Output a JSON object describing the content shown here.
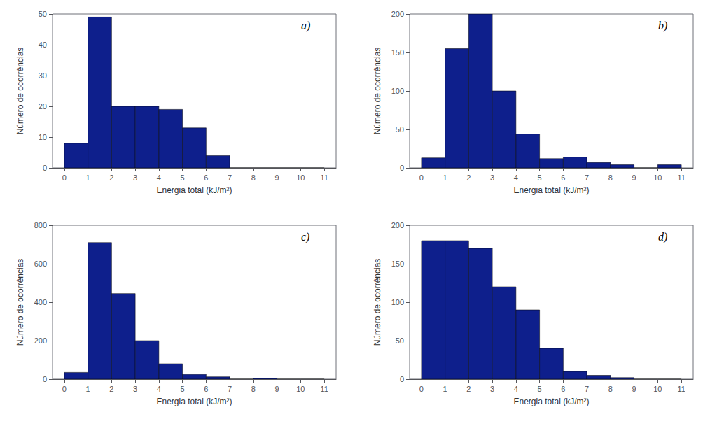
{
  "chart_data": [
    {
      "type": "histogram",
      "annotation": "a)",
      "xlabel": "Energia total (kJ/m²)",
      "ylabel": "Número de ocorrências",
      "bins": [
        0,
        1,
        2,
        3,
        4,
        5,
        6,
        7,
        8,
        9,
        10,
        11
      ],
      "values": [
        8,
        49,
        20,
        20,
        19,
        13,
        4,
        0,
        0,
        0,
        0
      ],
      "color": "#0e1f8c",
      "xlim": [
        -0.5,
        11.5
      ],
      "xticks": [
        0,
        1,
        2,
        3,
        4,
        5,
        6,
        7,
        8,
        9,
        10,
        11
      ],
      "ylim": [
        0,
        50
      ],
      "yticks": [
        0,
        10,
        20,
        30,
        40,
        50
      ],
      "grid": false
    },
    {
      "type": "histogram",
      "annotation": "b)",
      "xlabel": "Energia total (kJ/m²)",
      "ylabel": "Número de ocorrências",
      "bins": [
        0,
        1,
        2,
        3,
        4,
        5,
        6,
        7,
        8,
        9,
        10,
        11
      ],
      "values": [
        13,
        155,
        200,
        100,
        44,
        12,
        14,
        7,
        4,
        0,
        4
      ],
      "color": "#0e1f8c",
      "xlim": [
        -0.5,
        11.5
      ],
      "xticks": [
        0,
        1,
        2,
        3,
        4,
        5,
        6,
        7,
        8,
        9,
        10,
        11
      ],
      "ylim": [
        0,
        200
      ],
      "yticks": [
        0,
        50,
        100,
        150,
        200
      ],
      "grid": false
    },
    {
      "type": "histogram",
      "annotation": "c)",
      "xlabel": "Energia total (kJ/m²)",
      "ylabel": "Número de ocorrências",
      "bins": [
        0,
        1,
        2,
        3,
        4,
        5,
        6,
        7,
        8,
        9,
        10,
        11
      ],
      "values": [
        35,
        710,
        445,
        200,
        80,
        25,
        12,
        0,
        5,
        0,
        0
      ],
      "color": "#0e1f8c",
      "xlim": [
        -0.5,
        11.5
      ],
      "xticks": [
        0,
        1,
        2,
        3,
        4,
        5,
        6,
        7,
        8,
        9,
        10,
        11
      ],
      "ylim": [
        0,
        800
      ],
      "yticks": [
        0,
        200,
        400,
        600,
        800
      ],
      "grid": false
    },
    {
      "type": "histogram",
      "annotation": "d)",
      "xlabel": "Energia total (kJ/m²)",
      "ylabel": "Número de ocorrências",
      "bins": [
        0,
        1,
        2,
        3,
        4,
        5,
        6,
        7,
        8,
        9,
        10,
        11
      ],
      "values": [
        180,
        180,
        170,
        120,
        90,
        40,
        10,
        5,
        2,
        0,
        0
      ],
      "color": "#0e1f8c",
      "xlim": [
        -0.5,
        11.5
      ],
      "xticks": [
        0,
        1,
        2,
        3,
        4,
        5,
        6,
        7,
        8,
        9,
        10,
        11
      ],
      "ylim": [
        0,
        200
      ],
      "yticks": [
        0,
        50,
        100,
        150,
        200
      ],
      "grid": false
    }
  ]
}
